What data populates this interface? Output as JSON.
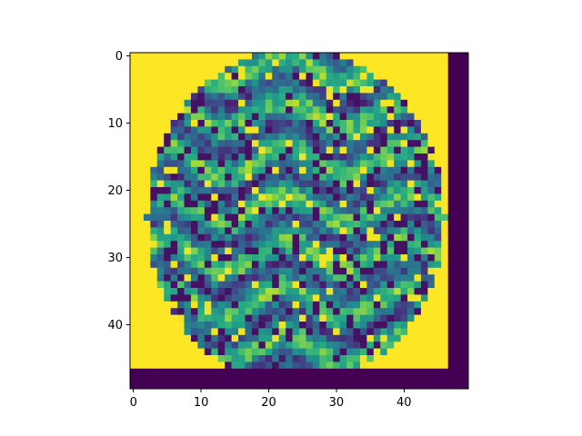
{
  "chart_data": {
    "type": "heatmap",
    "colormap": "viridis",
    "image_shape": [
      50,
      50
    ],
    "title": "",
    "xlabel": "",
    "ylabel": "",
    "xlim": [
      -0.5,
      49.5
    ],
    "ylim": [
      49.5,
      -0.5
    ],
    "y_axis_inverted": true,
    "grid": false,
    "colorbar": false,
    "x_ticks": [
      0,
      10,
      20,
      30,
      40
    ],
    "x_tick_labels": [
      "0",
      "10",
      "20",
      "30",
      "40"
    ],
    "y_ticks": [
      0,
      10,
      20,
      30,
      40
    ],
    "y_tick_labels": [
      "0",
      "10",
      "20",
      "30",
      "40"
    ],
    "content_description_values": {
      "background_value": 1.0,
      "right_border_columns": [
        47,
        49
      ],
      "right_border_value": 0.0,
      "bottom_border_rows": [
        47,
        49
      ],
      "bottom_border_value": 0.0,
      "face_region_center": [
        24,
        24
      ],
      "face_region_radii": [
        22,
        25
      ]
    },
    "colors": {
      "viridis_low": "#440154",
      "viridis_mid": "#21918c",
      "viridis_high": "#fde725"
    }
  }
}
